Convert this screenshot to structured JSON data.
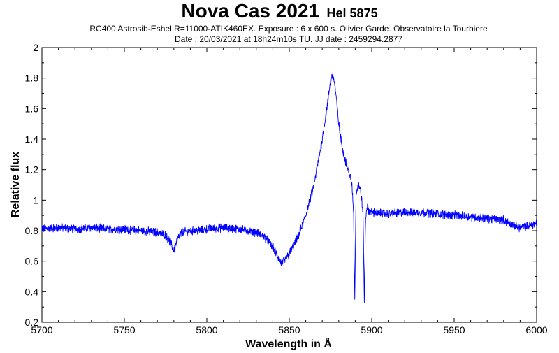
{
  "chart_data": {
    "type": "line",
    "title": "Nova Cas 2021",
    "title_suffix": "Hel 5875",
    "subtitle_line1": "RC400 Astrosib-Eshel R=11000-ATIK460EX. Exposure : 6 x 600 s. Olivier Garde. Observatoire la Tourbiere",
    "subtitle_line2": "Date : 20/03/2021 at 18h24m10s TU. JJ date : 2459294.2877",
    "xlabel": "Wavelength in Å",
    "ylabel": "Relative flux",
    "xlim": [
      5700,
      6000
    ],
    "ylim": [
      0.2,
      2.0
    ],
    "xticks": [
      5700,
      5750,
      5800,
      5850,
      5900,
      5950,
      6000
    ],
    "xtick_labels": [
      "5700",
      "5750",
      "5800",
      "5850",
      "5900",
      "5950",
      "6000"
    ],
    "yticks": [
      0.2,
      0.4,
      0.6,
      0.8,
      1.0,
      1.2,
      1.4,
      1.6,
      1.8,
      2.0
    ],
    "ytick_labels": [
      "0.2",
      "0.4",
      "0.6",
      "0.8",
      "1",
      "1.2",
      "1.4",
      "1.6",
      "1.8",
      "2"
    ],
    "grid": false,
    "line_color": "#0000ff",
    "series": [
      {
        "x": [
          5700,
          5710,
          5720,
          5730,
          5740,
          5750,
          5760,
          5770,
          5775,
          5778,
          5780,
          5782,
          5785,
          5790,
          5795,
          5800,
          5810,
          5820,
          5830,
          5835,
          5840,
          5843,
          5845,
          5847,
          5850,
          5855,
          5860,
          5865,
          5870,
          5873,
          5875,
          5876,
          5877,
          5878,
          5880,
          5882,
          5885,
          5887,
          5888,
          5889,
          5889.7,
          5890.5,
          5891.2,
          5892,
          5893,
          5894,
          5894.8,
          5895.5,
          5896.2,
          5897,
          5898,
          5900,
          5910,
          5920,
          5930,
          5940,
          5950,
          5960,
          5970,
          5980,
          5985,
          5990,
          5995,
          6000
        ],
        "y": [
          0.81,
          0.82,
          0.81,
          0.82,
          0.81,
          0.81,
          0.8,
          0.79,
          0.77,
          0.72,
          0.67,
          0.74,
          0.79,
          0.8,
          0.8,
          0.81,
          0.82,
          0.81,
          0.79,
          0.76,
          0.69,
          0.63,
          0.59,
          0.6,
          0.65,
          0.75,
          0.9,
          1.1,
          1.4,
          1.62,
          1.78,
          1.82,
          1.8,
          1.72,
          1.5,
          1.35,
          1.22,
          1.15,
          1.1,
          0.92,
          0.35,
          1.05,
          1.08,
          1.1,
          1.07,
          1.0,
          0.88,
          0.33,
          0.85,
          0.96,
          0.93,
          0.92,
          0.91,
          0.92,
          0.92,
          0.91,
          0.9,
          0.89,
          0.88,
          0.87,
          0.84,
          0.82,
          0.83,
          0.85
        ]
      }
    ]
  }
}
